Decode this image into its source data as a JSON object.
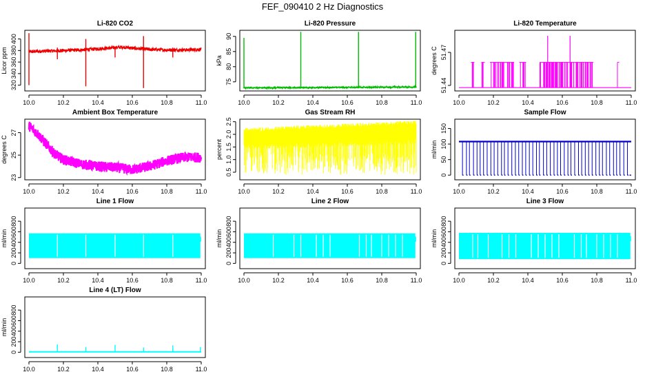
{
  "title": "FEF_090410  2 Hz Diagnostics",
  "chart_data": [
    {
      "id": "co2",
      "type": "line",
      "title": "Li-820 CO2",
      "ylabel": "Licor ppm",
      "color": "#ee0000",
      "xlim": [
        10.0,
        11.0
      ],
      "ylim": [
        310,
        415
      ],
      "xticks": [
        "10.0",
        "10.2",
        "10.4",
        "10.6",
        "10.8",
        "11.0"
      ],
      "yticks": [
        {
          "v": 320,
          "label": "320"
        },
        {
          "v": 340,
          "label": "340"
        },
        {
          "v": 360,
          "label": "360"
        },
        {
          "v": 380,
          "label": "380"
        },
        {
          "v": 400,
          "label": "400"
        }
      ],
      "series": [
        {
          "name": "CO2",
          "base": [
            [
              10.0,
              378
            ],
            [
              10.1,
              379
            ],
            [
              10.2,
              380
            ],
            [
              10.3,
              381
            ],
            [
              10.4,
              383
            ],
            [
              10.5,
              385
            ],
            [
              10.55,
              386
            ],
            [
              10.6,
              384
            ],
            [
              10.7,
              382
            ],
            [
              10.8,
              381
            ],
            [
              10.9,
              381
            ],
            [
              11.0,
              382
            ]
          ],
          "noise": 3,
          "spikes": [
            [
              10.0,
              320,
              410
            ],
            [
              10.165,
              365,
              385
            ],
            [
              10.33,
              318,
              400
            ],
            [
              10.5,
              368,
              385
            ],
            [
              10.665,
              315,
              405
            ],
            [
              10.835,
              368,
              385
            ]
          ]
        }
      ]
    },
    {
      "id": "pressure",
      "type": "line",
      "title": "Li-820 Pressure",
      "ylabel": "kPa",
      "color": "#00bb00",
      "xlim": [
        10.0,
        11.0
      ],
      "ylim": [
        72,
        92
      ],
      "xticks": [
        "10.0",
        "10.2",
        "10.4",
        "10.6",
        "10.8",
        "11.0"
      ],
      "yticks": [
        {
          "v": 75,
          "label": "75"
        },
        {
          "v": 80,
          "label": "80"
        },
        {
          "v": 85,
          "label": "85"
        },
        {
          "v": 90,
          "label": "90"
        }
      ],
      "series": [
        {
          "name": "Pressure",
          "base": [
            [
              10.0,
              73.0
            ],
            [
              11.0,
              73.3
            ]
          ],
          "noise": 0.25,
          "spikes": [
            [
              10.0,
              73,
              89.5
            ],
            [
              10.33,
              73,
              91.5
            ],
            [
              10.665,
              73,
              91.5
            ],
            [
              10.997,
              73,
              91.5
            ]
          ]
        }
      ]
    },
    {
      "id": "licor-temp",
      "type": "line",
      "title": "Li-820 Temperature",
      "ylabel": "degrees C",
      "color": "#ff00ff",
      "xlim": [
        10.0,
        11.0
      ],
      "ylim": [
        51.435,
        51.49
      ],
      "xticks": [
        "10.0",
        "10.2",
        "10.4",
        "10.6",
        "10.8",
        "11.0"
      ],
      "yticks": [
        {
          "v": 51.44,
          "label": "51.44"
        },
        {
          "v": 51.47,
          "label": "51.47"
        }
      ],
      "series": [
        {
          "name": "Temperature",
          "levels": [
            51.438,
            51.461
          ],
          "high_level": 51.485,
          "bands": [
            [
              10.07,
              10.09
            ],
            [
              10.13,
              10.15
            ],
            [
              10.18,
              10.32
            ],
            [
              10.35,
              10.39
            ],
            [
              10.47,
              10.78
            ],
            [
              10.92,
              10.93
            ]
          ],
          "high_spikes": [
            10.515,
            10.645
          ]
        }
      ]
    },
    {
      "id": "box-temp",
      "type": "line",
      "title": "Ambient Box Temperature",
      "ylabel": "degrees C",
      "color": "#ff00ff",
      "xlim": [
        10.0,
        11.0
      ],
      "ylim": [
        22.8,
        28.2
      ],
      "xticks": [
        "10.0",
        "10.2",
        "10.4",
        "10.6",
        "10.8",
        "11.0"
      ],
      "yticks": [
        {
          "v": 23,
          "label": "23"
        },
        {
          "v": 25,
          "label": "25"
        },
        {
          "v": 27,
          "label": "27"
        }
      ],
      "series": [
        {
          "name": "Box Temp",
          "base": [
            [
              10.0,
              27.6
            ],
            [
              10.05,
              26.9
            ],
            [
              10.1,
              26.0
            ],
            [
              10.15,
              25.1
            ],
            [
              10.2,
              24.6
            ],
            [
              10.3,
              24.2
            ],
            [
              10.4,
              24.0
            ],
            [
              10.5,
              23.9
            ],
            [
              10.6,
              23.7
            ],
            [
              10.7,
              24.0
            ],
            [
              10.8,
              24.5
            ],
            [
              10.9,
              24.8
            ],
            [
              11.0,
              24.8
            ]
          ],
          "noise": 0.45
        }
      ]
    },
    {
      "id": "rh",
      "type": "line",
      "title": "Gas Stream RH",
      "ylabel": "percent",
      "color": "#ffff00",
      "xlim": [
        10.0,
        11.0
      ],
      "ylim": [
        0.2,
        2.6
      ],
      "xticks": [
        "10.0",
        "10.2",
        "10.4",
        "10.6",
        "10.8",
        "11.0"
      ],
      "yticks": [
        {
          "v": 0.5,
          "label": "0.5"
        },
        {
          "v": 1.0,
          "label": "1.0"
        },
        {
          "v": 1.5,
          "label": "1.5"
        },
        {
          "v": 2.0,
          "label": "2.0"
        },
        {
          "v": 2.5,
          "label": "2.5"
        }
      ],
      "series": [
        {
          "name": "RH",
          "band_top": [
            [
              10.0,
              2.1
            ],
            [
              11.0,
              2.4
            ]
          ],
          "band_bottom": [
            [
              10.0,
              1.6
            ],
            [
              11.0,
              1.8
            ]
          ],
          "dips_min": 0.4
        }
      ]
    },
    {
      "id": "sample-flow",
      "type": "line",
      "title": "Sample Flow",
      "ylabel": "ml/min",
      "color": "#0000cc",
      "xlim": [
        10.0,
        11.0
      ],
      "ylim": [
        -15,
        180
      ],
      "xticks": [
        "10.0",
        "10.2",
        "10.4",
        "10.6",
        "10.8",
        "11.0"
      ],
      "yticks": [
        {
          "v": 0,
          "label": "0"
        },
        {
          "v": 50,
          "label": "50"
        },
        {
          "v": 100,
          "label": "100"
        },
        {
          "v": 150,
          "label": "150"
        }
      ],
      "series": [
        {
          "name": "Sample Flow",
          "level": 108,
          "low": 0,
          "dips": 48
        }
      ]
    },
    {
      "id": "line1",
      "type": "line",
      "title": "Line 1 Flow",
      "ylabel": "ml/min",
      "color": "#00ffff",
      "xlim": [
        10.0,
        11.0
      ],
      "ylim": [
        -100,
        1050
      ],
      "xticks": [
        "10.0",
        "10.2",
        "10.4",
        "10.6",
        "10.8",
        "11.0"
      ],
      "yticks": [
        {
          "v": 0,
          "label": "0"
        },
        {
          "v": 200,
          "label": "200"
        },
        {
          "v": 400,
          "label": "400"
        },
        {
          "v": 600,
          "label": "600"
        },
        {
          "v": 800,
          "label": "800"
        }
      ],
      "series": [
        {
          "name": "Line 1",
          "band": [
            100,
            570
          ],
          "gaps": [
            10.165,
            10.33,
            10.5,
            10.665,
            10.835
          ]
        }
      ]
    },
    {
      "id": "line2",
      "type": "line",
      "title": "Line 2 Flow",
      "ylabel": "ml/min",
      "color": "#00ffff",
      "xlim": [
        10.0,
        11.0
      ],
      "ylim": [
        -100,
        1050
      ],
      "xticks": [
        "10.0",
        "10.2",
        "10.4",
        "10.6",
        "10.8",
        "11.0"
      ],
      "yticks": [
        {
          "v": 0,
          "label": "0"
        },
        {
          "v": 200,
          "label": "200"
        },
        {
          "v": 400,
          "label": "400"
        },
        {
          "v": 600,
          "label": "600"
        },
        {
          "v": 800,
          "label": "800"
        }
      ],
      "series": [
        {
          "name": "Line 2",
          "band": [
            100,
            570
          ],
          "gaps": [
            10.17,
            10.29,
            10.33,
            10.42,
            10.46,
            10.5,
            10.67,
            10.71,
            10.74,
            10.8,
            10.84,
            10.88,
            10.92
          ]
        }
      ]
    },
    {
      "id": "line3",
      "type": "line",
      "title": "Line 3 Flow",
      "ylabel": "ml/min",
      "color": "#00ffff",
      "xlim": [
        10.0,
        11.0
      ],
      "ylim": [
        -100,
        1050
      ],
      "xticks": [
        "10.0",
        "10.2",
        "10.4",
        "10.6",
        "10.8",
        "11.0"
      ],
      "yticks": [
        {
          "v": 0,
          "label": "0"
        },
        {
          "v": 200,
          "label": "200"
        },
        {
          "v": 400,
          "label": "400"
        },
        {
          "v": 600,
          "label": "600"
        },
        {
          "v": 800,
          "label": "800"
        }
      ],
      "series": [
        {
          "name": "Line 3",
          "band": [
            80,
            580
          ],
          "gaps": [
            10.08,
            10.11,
            10.17,
            10.25,
            10.29,
            10.33,
            10.42,
            10.46,
            10.5,
            10.54,
            10.58,
            10.67,
            10.71,
            10.74,
            10.8,
            10.84,
            10.88,
            10.92
          ]
        }
      ]
    },
    {
      "id": "line4",
      "type": "line",
      "title": "Line 4 (LT) Flow",
      "ylabel": "ml/min",
      "color": "#00ffff",
      "xlim": [
        10.0,
        11.0
      ],
      "ylim": [
        -100,
        1050
      ],
      "xticks": [
        "10.0",
        "10.2",
        "10.4",
        "10.6",
        "10.8",
        "11.0"
      ],
      "yticks": [
        {
          "v": 0,
          "label": "0"
        },
        {
          "v": 200,
          "label": "200"
        },
        {
          "v": 400,
          "label": "400"
        },
        {
          "v": 600,
          "label": "600"
        },
        {
          "v": 800,
          "label": "800"
        }
      ],
      "series": [
        {
          "name": "Line 4",
          "level": 8,
          "spikes": [
            [
              10.165,
              150
            ],
            [
              10.33,
              100
            ],
            [
              10.5,
              140
            ],
            [
              10.665,
              90
            ],
            [
              10.835,
              130
            ],
            [
              10.995,
              100
            ]
          ]
        }
      ]
    }
  ]
}
